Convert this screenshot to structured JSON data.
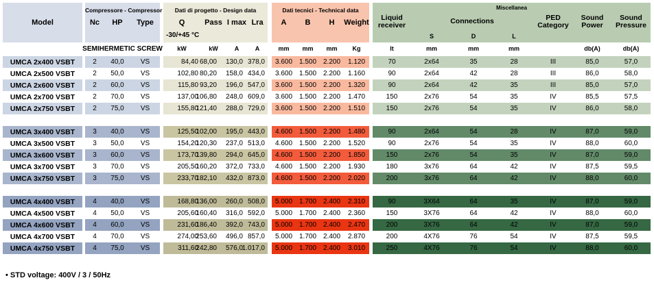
{
  "colors": {
    "vars": {
      "hdr-blue": "#d7dde9",
      "hdr-beige": "#ebe9d9",
      "hdr-salmon": "#f9c4ad",
      "hdr-green": "#b9ccb2",
      "g0-blue": "#ccd5e3",
      "g0-beige": "#e7e5d3",
      "g0-salmon": "#f9b99f",
      "g0-green": "#c3d2bd",
      "g1-blue": "#a8b5cc",
      "g1-beige": "#c9c5a2",
      "g1-salmon": "#f25b3b",
      "g1-green": "#628a69",
      "g2-blue": "#93a3c0",
      "g2-beige": "#bfbb99",
      "g2-salmon": "#e93512",
      "g2-green": "#356843"
    }
  },
  "header": {
    "model": "Model",
    "compressor": {
      "title": "Compressore - Compressor",
      "nc": "Nc",
      "hp": "HP",
      "type": "Type",
      "subnote": "SEMIHERMETIC SCREW"
    },
    "design": {
      "title": "Dati di progetto - Design data",
      "q": "Q",
      "pass": "Pass",
      "imax": "I max",
      "lra": "Lra",
      "note": "-30/+45 °C",
      "units": {
        "q": "kW",
        "pass": "kW",
        "imax": "A",
        "lra": "A"
      }
    },
    "technical": {
      "title": "Dati tecnici - Technical data",
      "a": "A",
      "b": "B",
      "h": "H",
      "weight": "Weight",
      "units": {
        "a": "mm",
        "b": "mm",
        "h": "mm",
        "weight": "Kg"
      }
    },
    "miscellanea": {
      "title": "Miscellanea",
      "liquid_receiver": "Liquid receiver",
      "connections": "Connections",
      "s": "S",
      "d": "D",
      "l": "L",
      "ped": "PED Category",
      "sound_power": "Sound Power",
      "sound_pressure": "Sound Pressure",
      "units": {
        "liquid_receiver": "lt",
        "s": "mm",
        "d": "mm",
        "l": "mm",
        "ped": "",
        "sound_power": "db(A)",
        "sound_pressure": "db(A)"
      }
    }
  },
  "columns": [
    "model",
    "nc",
    "hp",
    "type",
    "q_kw",
    "pass_kw",
    "i_max_a",
    "lra_a",
    "a_mm",
    "b_mm",
    "h_mm",
    "weight_kg",
    "liquid_receiver_lt",
    "conn_s_mm",
    "conn_d_mm",
    "conn_l_mm",
    "ped_category",
    "sound_power_dba",
    "sound_pressure_dba"
  ],
  "groups": [
    {
      "rows": [
        [
          "UMCA 2x400 VSBT",
          "2",
          "40,0",
          "VS",
          "84,40",
          "68,00",
          "130,0",
          "378,0",
          "3.600",
          "1.500",
          "2.200",
          "1.120",
          "70",
          "2x64",
          "35",
          "28",
          "III",
          "85,0",
          "57,0"
        ],
        [
          "UMCA 2x500 VSBT",
          "2",
          "50,0",
          "VS",
          "102,80",
          "80,20",
          "158,0",
          "434,0",
          "3.600",
          "1.500",
          "2.200",
          "1.160",
          "90",
          "2x64",
          "42",
          "28",
          "III",
          "86,0",
          "58,0"
        ],
        [
          "UMCA 2x600 VSBT",
          "2",
          "60,0",
          "VS",
          "115,80",
          "93,20",
          "196,0",
          "547,0",
          "3.600",
          "1.500",
          "2.200",
          "1.320",
          "90",
          "2x64",
          "42",
          "35",
          "III",
          "85,0",
          "57,0"
        ],
        [
          "UMCA 2x700 VSBT",
          "2",
          "70,0",
          "VS",
          "137,00",
          "106,80",
          "248,0",
          "609,0",
          "3.600",
          "1.500",
          "2.200",
          "1.470",
          "150",
          "2x76",
          "54",
          "35",
          "IV",
          "85,5",
          "57,5"
        ],
        [
          "UMCA 2x750 VSBT",
          "2",
          "75,0",
          "VS",
          "155,80",
          "121,40",
          "288,0",
          "729,0",
          "3.600",
          "1.500",
          "2.200",
          "1.510",
          "150",
          "2x76",
          "54",
          "35",
          "IV",
          "86,0",
          "58,0"
        ]
      ]
    },
    {
      "rows": [
        [
          "UMCA 3x400 VSBT",
          "3",
          "40,0",
          "VS",
          "125,50",
          "102,00",
          "195,0",
          "443,0",
          "4.600",
          "1.500",
          "2.200",
          "1.480",
          "90",
          "2x64",
          "54",
          "28",
          "IV",
          "87,0",
          "59,0"
        ],
        [
          "UMCA 3x500 VSBT",
          "3",
          "50,0",
          "VS",
          "154,20",
          "120,30",
          "237,0",
          "513,0",
          "4.600",
          "1.500",
          "2.200",
          "1.520",
          "90",
          "2x76",
          "54",
          "35",
          "IV",
          "88,0",
          "60,0"
        ],
        [
          "UMCA 3x600 VSBT",
          "3",
          "60,0",
          "VS",
          "173,70",
          "139,80",
          "294,0",
          "645,0",
          "4.600",
          "1.500",
          "2.200",
          "1.850",
          "150",
          "2x76",
          "54",
          "35",
          "IV",
          "87,0",
          "59,0"
        ],
        [
          "UMCA 3x700 VSBT",
          "3",
          "70,0",
          "VS",
          "205,50",
          "160,20",
          "372,0",
          "733,0",
          "4.600",
          "1.500",
          "2.200",
          "1.930",
          "180",
          "3x76",
          "64",
          "42",
          "IV",
          "87,5",
          "59,5"
        ],
        [
          "UMCA 3x750 VSBT",
          "3",
          "75,0",
          "VS",
          "233,70",
          "182,10",
          "432,0",
          "873,0",
          "4.600",
          "1.500",
          "2.200",
          "2.020",
          "200",
          "3x76",
          "64",
          "42",
          "IV",
          "88,0",
          "60,0"
        ]
      ]
    },
    {
      "rows": [
        [
          "UMCA 4x400 VSBT",
          "4",
          "40,0",
          "VS",
          "168,80",
          "136,00",
          "260,0",
          "508,0",
          "5.000",
          "1.700",
          "2.400",
          "2.310",
          "90",
          "3X64",
          "64",
          "35",
          "IV",
          "87,0",
          "59,0"
        ],
        [
          "UMCA 4x500 VSBT",
          "4",
          "50,0",
          "VS",
          "205,60",
          "160,40",
          "316,0",
          "592,0",
          "5.000",
          "1.700",
          "2.400",
          "2.360",
          "150",
          "3X76",
          "64",
          "42",
          "IV",
          "88,0",
          "60,0"
        ],
        [
          "UMCA 4x600 VSBT",
          "4",
          "60,0",
          "VS",
          "231,60",
          "186,40",
          "392,0",
          "743,0",
          "5.000",
          "1.700",
          "2.400",
          "2.470",
          "200",
          "3X76",
          "64",
          "42",
          "IV",
          "87,0",
          "59,0"
        ],
        [
          "UMCA 4x700 VSBT",
          "4",
          "70,0",
          "VS",
          "274,00",
          "253,60",
          "496,0",
          "857,0",
          "5.000",
          "1.700",
          "2.400",
          "2.870",
          "200",
          "4X76",
          "76",
          "54",
          "IV",
          "87,5",
          "59,5"
        ],
        [
          "UMCA 4x750 VSBT",
          "4",
          "75,0",
          "VS",
          "311,60",
          "242,80",
          "576,0",
          "1.017,0",
          "5.000",
          "1.700",
          "2.400",
          "3.010",
          "250",
          "4X76",
          "76",
          "54",
          "IV",
          "88,0",
          "60,0"
        ]
      ]
    }
  ],
  "footer_note": "• STD voltage: 400V / 3 / 50Hz"
}
